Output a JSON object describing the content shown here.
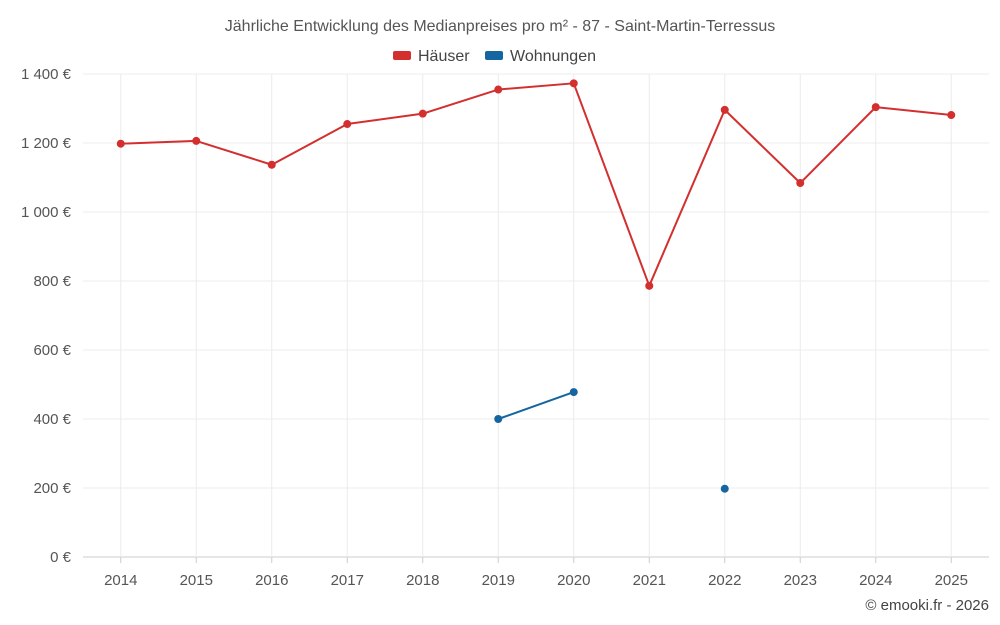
{
  "chart_data": {
    "type": "line",
    "title": "Jährliche Entwicklung des Medianpreises pro m² - 87 - Saint-Martin-Terressus",
    "categories": [
      "2014",
      "2015",
      "2016",
      "2017",
      "2018",
      "2019",
      "2020",
      "2021",
      "2022",
      "2023",
      "2024",
      "2025"
    ],
    "y_ticks": [
      0,
      200,
      400,
      600,
      800,
      1000,
      1200,
      1400
    ],
    "y_tick_labels": [
      "0 €",
      "200 €",
      "400 €",
      "600 €",
      "800 €",
      "1 000 €",
      "1 200 €",
      "1 400 €"
    ],
    "ylim": [
      0,
      1400
    ],
    "xlabel": "",
    "ylabel": "",
    "grid": true,
    "legend_position": "top-center",
    "series": [
      {
        "name": "Häuser",
        "color": "#d32f2f",
        "values": [
          1198,
          1206,
          1137,
          1255,
          1285,
          1355,
          1373,
          786,
          1296,
          1084,
          1304,
          1281
        ]
      },
      {
        "name": "Wohnungen",
        "color": "#1565a0",
        "values": [
          null,
          null,
          null,
          null,
          null,
          400,
          478,
          null,
          198,
          null,
          null,
          null
        ]
      }
    ],
    "credit": "© emooki.fr - 2026"
  }
}
